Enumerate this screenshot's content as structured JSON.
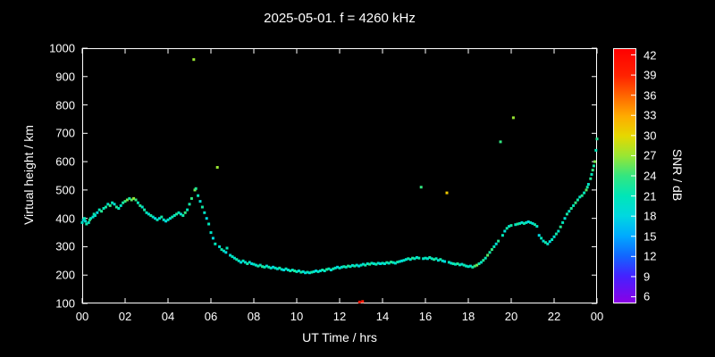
{
  "colors": {
    "background": "#000000",
    "foreground": "#ffffff"
  },
  "chart_data": {
    "type": "scatter",
    "title": "2025-05-01. f = 4260 kHz",
    "xlabel": "UT Time / hrs",
    "ylabel": "Virtual height / km",
    "xlim": [
      0,
      24
    ],
    "ylim": [
      100,
      1000
    ],
    "grid": false,
    "x_ticks": {
      "values": [
        0,
        2,
        4,
        6,
        8,
        10,
        12,
        14,
        16,
        18,
        20,
        22,
        24
      ],
      "labels": [
        "00",
        "02",
        "04",
        "06",
        "08",
        "10",
        "12",
        "14",
        "16",
        "18",
        "20",
        "22",
        "00"
      ]
    },
    "y_ticks": {
      "values": [
        100,
        200,
        300,
        400,
        500,
        600,
        700,
        800,
        900,
        1000
      ],
      "labels": [
        "100",
        "200",
        "300",
        "400",
        "500",
        "600",
        "700",
        "800",
        "900",
        "1000"
      ]
    },
    "colorbar": {
      "label": "SNR / dB",
      "min": 5,
      "max": 43,
      "tick_values": [
        6,
        9,
        12,
        15,
        18,
        21,
        24,
        27,
        30,
        33,
        36,
        39,
        42
      ],
      "tick_labels": [
        "6",
        "9",
        "12",
        "15",
        "18",
        "21",
        "24",
        "27",
        "30",
        "33",
        "36",
        "39",
        "42"
      ],
      "stops": [
        [
          5,
          "#8a00e6"
        ],
        [
          9,
          "#4422ff"
        ],
        [
          12,
          "#1166ff"
        ],
        [
          15,
          "#00aaff"
        ],
        [
          18,
          "#00d8e0"
        ],
        [
          21,
          "#00e6b8"
        ],
        [
          24,
          "#33e680"
        ],
        [
          27,
          "#99e633"
        ],
        [
          30,
          "#e6d800"
        ],
        [
          33,
          "#ffaa00"
        ],
        [
          36,
          "#ff6600"
        ],
        [
          39,
          "#ff2200"
        ],
        [
          43,
          "#ff0000"
        ]
      ]
    },
    "points": [
      [
        0.0,
        385,
        20
      ],
      [
        0.05,
        395,
        18
      ],
      [
        0.1,
        400,
        21
      ],
      [
        0.15,
        390,
        19
      ],
      [
        0.2,
        380,
        22
      ],
      [
        0.3,
        385,
        20
      ],
      [
        0.35,
        395,
        24
      ],
      [
        0.4,
        400,
        21
      ],
      [
        0.5,
        405,
        19
      ],
      [
        0.55,
        415,
        22
      ],
      [
        0.6,
        410,
        20
      ],
      [
        0.7,
        420,
        18
      ],
      [
        0.8,
        430,
        21
      ],
      [
        0.9,
        425,
        23
      ],
      [
        1.0,
        435,
        21
      ],
      [
        1.1,
        440,
        22
      ],
      [
        1.2,
        450,
        20
      ],
      [
        1.3,
        445,
        24
      ],
      [
        1.4,
        455,
        21
      ],
      [
        1.5,
        450,
        19
      ],
      [
        1.6,
        440,
        23
      ],
      [
        1.7,
        435,
        21
      ],
      [
        1.8,
        445,
        20
      ],
      [
        1.9,
        455,
        22
      ],
      [
        2.0,
        460,
        24
      ],
      [
        2.1,
        465,
        26
      ],
      [
        2.2,
        470,
        22
      ],
      [
        2.3,
        465,
        25
      ],
      [
        2.4,
        470,
        27
      ],
      [
        2.5,
        465,
        24
      ],
      [
        2.6,
        455,
        21
      ],
      [
        2.7,
        445,
        23
      ],
      [
        2.8,
        440,
        20
      ],
      [
        2.9,
        430,
        22
      ],
      [
        3.0,
        420,
        21
      ],
      [
        3.1,
        415,
        19
      ],
      [
        3.2,
        410,
        22
      ],
      [
        3.3,
        405,
        20
      ],
      [
        3.4,
        400,
        18
      ],
      [
        3.5,
        395,
        21
      ],
      [
        3.6,
        400,
        19
      ],
      [
        3.7,
        405,
        22
      ],
      [
        3.8,
        395,
        20
      ],
      [
        3.9,
        390,
        18
      ],
      [
        4.0,
        395,
        21
      ],
      [
        4.1,
        400,
        19
      ],
      [
        4.2,
        405,
        22
      ],
      [
        4.3,
        410,
        20
      ],
      [
        4.4,
        415,
        23
      ],
      [
        4.5,
        420,
        21
      ],
      [
        4.6,
        415,
        19
      ],
      [
        4.7,
        410,
        22
      ],
      [
        4.8,
        420,
        24
      ],
      [
        4.9,
        430,
        21
      ],
      [
        5.0,
        450,
        22
      ],
      [
        5.1,
        470,
        24
      ],
      [
        5.2,
        960,
        27
      ],
      [
        5.25,
        500,
        26
      ],
      [
        5.3,
        505,
        23
      ],
      [
        5.4,
        480,
        21
      ],
      [
        5.5,
        460,
        19
      ],
      [
        5.6,
        440,
        22
      ],
      [
        5.7,
        420,
        20
      ],
      [
        5.8,
        400,
        18
      ],
      [
        5.9,
        380,
        21
      ],
      [
        6.0,
        350,
        20
      ],
      [
        6.1,
        330,
        18
      ],
      [
        6.2,
        310,
        21
      ],
      [
        6.3,
        580,
        27
      ],
      [
        6.4,
        300,
        19
      ],
      [
        6.5,
        290,
        22
      ],
      [
        6.6,
        285,
        20
      ],
      [
        6.7,
        280,
        18
      ],
      [
        6.75,
        295,
        21
      ],
      [
        6.9,
        270,
        19
      ],
      [
        7.0,
        265,
        21
      ],
      [
        7.1,
        260,
        19
      ],
      [
        7.2,
        255,
        22
      ],
      [
        7.3,
        250,
        20
      ],
      [
        7.4,
        245,
        18
      ],
      [
        7.5,
        250,
        21
      ],
      [
        7.6,
        245,
        19
      ],
      [
        7.7,
        240,
        22
      ],
      [
        7.8,
        245,
        20
      ],
      [
        7.9,
        240,
        18
      ],
      [
        8.0,
        238,
        21
      ],
      [
        8.1,
        235,
        19
      ],
      [
        8.2,
        232,
        22
      ],
      [
        8.3,
        235,
        20
      ],
      [
        8.4,
        230,
        23
      ],
      [
        8.5,
        228,
        21
      ],
      [
        8.6,
        232,
        19
      ],
      [
        8.7,
        228,
        22
      ],
      [
        8.8,
        225,
        20
      ],
      [
        8.9,
        228,
        18
      ],
      [
        9.0,
        225,
        21
      ],
      [
        9.1,
        222,
        19
      ],
      [
        9.2,
        225,
        22
      ],
      [
        9.3,
        220,
        20
      ],
      [
        9.4,
        218,
        18
      ],
      [
        9.5,
        222,
        21
      ],
      [
        9.6,
        218,
        19
      ],
      [
        9.7,
        215,
        22
      ],
      [
        9.8,
        218,
        20
      ],
      [
        9.9,
        215,
        23
      ],
      [
        10.0,
        212,
        21
      ],
      [
        10.1,
        215,
        19
      ],
      [
        10.2,
        210,
        22
      ],
      [
        10.3,
        212,
        20
      ],
      [
        10.4,
        208,
        18
      ],
      [
        10.5,
        210,
        21
      ],
      [
        10.6,
        208,
        19
      ],
      [
        10.7,
        210,
        22
      ],
      [
        10.8,
        212,
        20
      ],
      [
        10.9,
        215,
        18
      ],
      [
        11.0,
        212,
        21
      ],
      [
        11.1,
        215,
        19
      ],
      [
        11.2,
        218,
        22
      ],
      [
        11.3,
        215,
        20
      ],
      [
        11.4,
        220,
        23
      ],
      [
        11.5,
        222,
        21
      ],
      [
        11.6,
        218,
        19
      ],
      [
        11.7,
        222,
        22
      ],
      [
        11.8,
        225,
        20
      ],
      [
        11.9,
        228,
        18
      ],
      [
        12.0,
        225,
        21
      ],
      [
        12.1,
        228,
        19
      ],
      [
        12.2,
        230,
        22
      ],
      [
        12.3,
        228,
        20
      ],
      [
        12.4,
        232,
        23
      ],
      [
        12.5,
        230,
        21
      ],
      [
        12.6,
        234,
        19
      ],
      [
        12.7,
        232,
        22
      ],
      [
        12.8,
        235,
        20
      ],
      [
        12.9,
        232,
        18
      ],
      [
        12.93,
        105,
        41
      ],
      [
        13.07,
        107,
        40
      ],
      [
        13.0,
        235,
        21
      ],
      [
        13.1,
        238,
        19
      ],
      [
        13.2,
        235,
        22
      ],
      [
        13.3,
        240,
        20
      ],
      [
        13.4,
        238,
        23
      ],
      [
        13.5,
        242,
        21
      ],
      [
        13.6,
        240,
        19
      ],
      [
        13.7,
        238,
        22
      ],
      [
        13.8,
        242,
        20
      ],
      [
        13.9,
        240,
        18
      ],
      [
        14.0,
        242,
        21
      ],
      [
        14.1,
        240,
        19
      ],
      [
        14.2,
        244,
        22
      ],
      [
        14.3,
        242,
        20
      ],
      [
        14.4,
        246,
        23
      ],
      [
        14.5,
        244,
        21
      ],
      [
        14.6,
        242,
        19
      ],
      [
        14.7,
        246,
        22
      ],
      [
        14.8,
        248,
        20
      ],
      [
        14.9,
        250,
        18
      ],
      [
        15.0,
        252,
        21
      ],
      [
        15.1,
        255,
        19
      ],
      [
        15.2,
        258,
        22
      ],
      [
        15.3,
        255,
        20
      ],
      [
        15.4,
        260,
        23
      ],
      [
        15.5,
        258,
        21
      ],
      [
        15.6,
        262,
        19
      ],
      [
        15.7,
        260,
        22
      ],
      [
        15.8,
        510,
        24
      ],
      [
        15.9,
        258,
        20
      ],
      [
        16.0,
        260,
        21
      ],
      [
        16.1,
        258,
        19
      ],
      [
        16.2,
        262,
        22
      ],
      [
        16.3,
        258,
        20
      ],
      [
        16.4,
        255,
        23
      ],
      [
        16.5,
        258,
        21
      ],
      [
        16.6,
        252,
        19
      ],
      [
        16.7,
        255,
        22
      ],
      [
        16.8,
        250,
        20
      ],
      [
        16.9,
        248,
        18
      ],
      [
        17.0,
        490,
        31
      ],
      [
        17.1,
        245,
        21
      ],
      [
        17.2,
        242,
        19
      ],
      [
        17.3,
        240,
        22
      ],
      [
        17.4,
        238,
        20
      ],
      [
        17.5,
        240,
        23
      ],
      [
        17.6,
        236,
        21
      ],
      [
        17.7,
        238,
        19
      ],
      [
        17.8,
        235,
        22
      ],
      [
        17.9,
        232,
        20
      ],
      [
        18.0,
        230,
        21
      ],
      [
        18.1,
        232,
        19
      ],
      [
        18.2,
        228,
        22
      ],
      [
        18.3,
        232,
        24
      ],
      [
        18.4,
        235,
        26
      ],
      [
        18.5,
        240,
        22
      ],
      [
        18.6,
        245,
        20
      ],
      [
        18.7,
        252,
        23
      ],
      [
        18.8,
        260,
        21
      ],
      [
        18.9,
        270,
        25
      ],
      [
        19.0,
        280,
        22
      ],
      [
        19.1,
        290,
        24
      ],
      [
        19.2,
        300,
        21
      ],
      [
        19.3,
        310,
        19
      ],
      [
        19.4,
        320,
        23
      ],
      [
        19.5,
        670,
        24
      ],
      [
        19.6,
        340,
        21
      ],
      [
        19.7,
        355,
        19
      ],
      [
        19.8,
        365,
        22
      ],
      [
        19.9,
        372,
        20
      ],
      [
        20.0,
        375,
        22
      ],
      [
        20.1,
        755,
        27
      ],
      [
        20.2,
        378,
        20
      ],
      [
        20.3,
        380,
        23
      ],
      [
        20.4,
        382,
        21
      ],
      [
        20.5,
        385,
        19
      ],
      [
        20.6,
        382,
        22
      ],
      [
        20.7,
        385,
        20
      ],
      [
        20.8,
        388,
        18
      ],
      [
        20.9,
        385,
        21
      ],
      [
        21.0,
        382,
        19
      ],
      [
        21.1,
        378,
        22
      ],
      [
        21.2,
        372,
        20
      ],
      [
        21.3,
        340,
        18
      ],
      [
        21.4,
        330,
        21
      ],
      [
        21.5,
        320,
        19
      ],
      [
        21.6,
        315,
        22
      ],
      [
        21.7,
        310,
        20
      ],
      [
        21.8,
        318,
        18
      ],
      [
        21.9,
        325,
        21
      ],
      [
        22.0,
        335,
        19
      ],
      [
        22.1,
        345,
        22
      ],
      [
        22.2,
        355,
        20
      ],
      [
        22.3,
        370,
        23
      ],
      [
        22.4,
        385,
        21
      ],
      [
        22.5,
        400,
        19
      ],
      [
        22.6,
        415,
        22
      ],
      [
        22.7,
        425,
        20
      ],
      [
        22.8,
        435,
        23
      ],
      [
        22.9,
        445,
        21
      ],
      [
        23.0,
        455,
        24
      ],
      [
        23.1,
        465,
        22
      ],
      [
        23.2,
        475,
        20
      ],
      [
        23.3,
        480,
        23
      ],
      [
        23.4,
        490,
        21
      ],
      [
        23.5,
        500,
        25
      ],
      [
        23.55,
        510,
        22
      ],
      [
        23.6,
        520,
        20
      ],
      [
        23.7,
        540,
        23
      ],
      [
        23.75,
        555,
        21
      ],
      [
        23.8,
        570,
        24
      ],
      [
        23.85,
        585,
        22
      ],
      [
        23.9,
        600,
        26
      ],
      [
        23.95,
        640,
        21
      ],
      [
        24.0,
        680,
        23
      ]
    ]
  }
}
